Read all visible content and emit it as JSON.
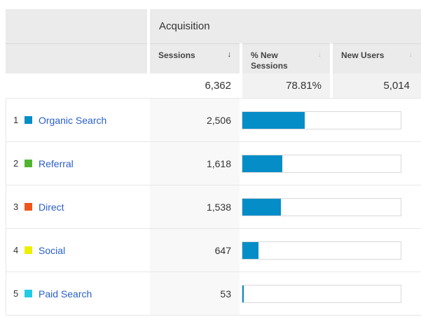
{
  "table": {
    "group_header": "Acquisition",
    "columns": [
      {
        "label": "Sessions",
        "sort": "active"
      },
      {
        "label": "% New Sessions",
        "sort": "inactive"
      },
      {
        "label": "New Users",
        "sort": "inactive"
      }
    ],
    "summary": {
      "sessions": "6,362",
      "pct_new_sessions": "78.81%",
      "new_users": "5,014"
    },
    "rows": [
      {
        "rank": "1",
        "channel": "Organic Search",
        "swatch_color": "#058dc7",
        "sessions": "2,506",
        "bar_pct": 39.4
      },
      {
        "rank": "2",
        "channel": "Referral",
        "swatch_color": "#50b432",
        "sessions": "1,618",
        "bar_pct": 25.4
      },
      {
        "rank": "3",
        "channel": "Direct",
        "swatch_color": "#ed561b",
        "sessions": "1,538",
        "bar_pct": 24.2
      },
      {
        "rank": "4",
        "channel": "Social",
        "swatch_color": "#edef00",
        "sessions": "647",
        "bar_pct": 10.2
      },
      {
        "rank": "5",
        "channel": "Paid Search",
        "swatch_color": "#24cbe5",
        "sessions": "53",
        "bar_pct": 0.8
      }
    ]
  },
  "icons": {
    "sort_desc_active": "↓",
    "sort_inactive": "↓"
  },
  "colors": {
    "bar_fill": "#058dc7",
    "link": "#2a5fc9",
    "header_bg": "#ebebeb",
    "summary_bg": "#f2f2f2",
    "sessions_col_bg": "#f8f8f8"
  },
  "chart_data": {
    "type": "bar",
    "orientation": "horizontal",
    "title": "Acquisition — Sessions by channel",
    "categories": [
      "Organic Search",
      "Referral",
      "Direct",
      "Social",
      "Paid Search"
    ],
    "values": [
      2506,
      1618,
      1538,
      647,
      53
    ],
    "total_sessions": 6362,
    "pct_new_sessions_total": 78.81,
    "new_users_total": 5014,
    "xlim": [
      0,
      6362
    ],
    "bar_color": "#058dc7",
    "legend_colors": [
      "#058dc7",
      "#50b432",
      "#ed561b",
      "#edef00",
      "#24cbe5"
    ]
  }
}
